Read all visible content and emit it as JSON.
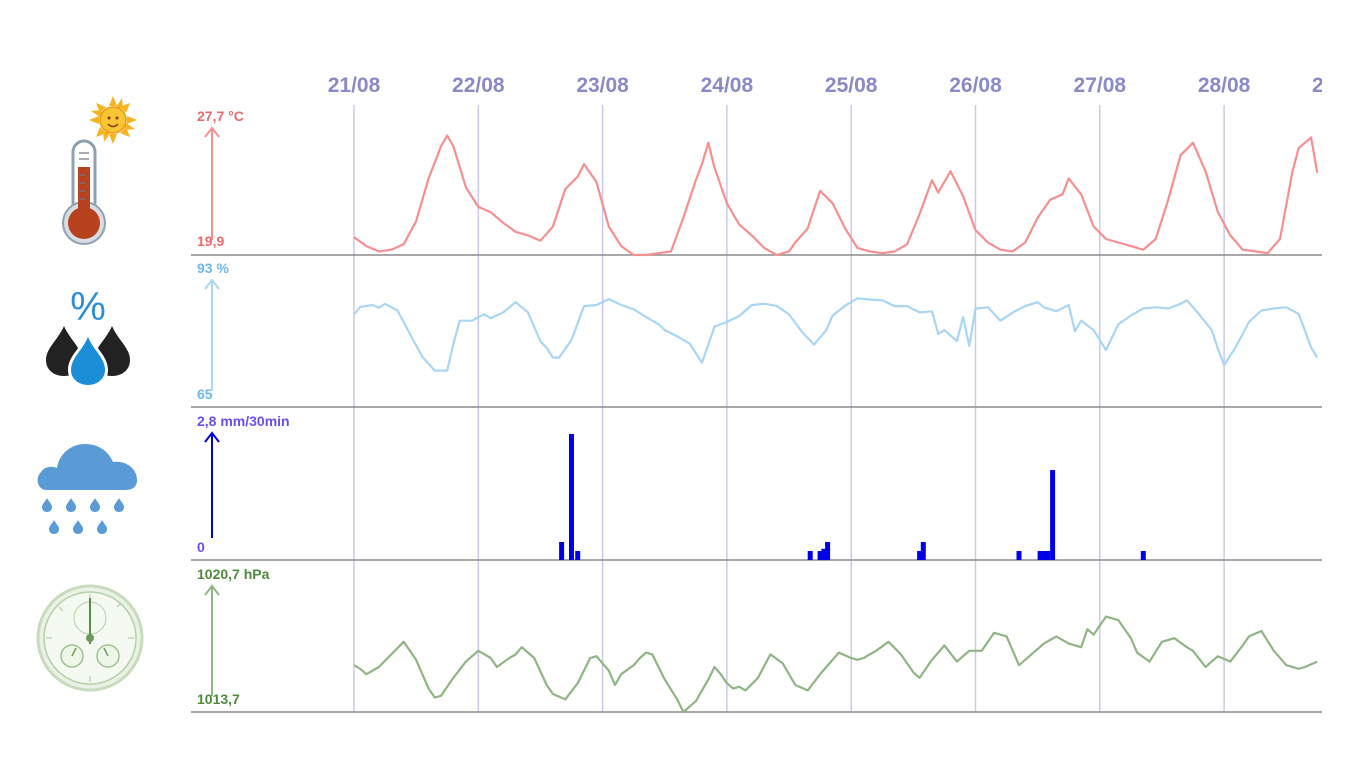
{
  "chart_data": {
    "type": "line",
    "x_ticks": [
      "21/08",
      "22/08",
      "23/08",
      "24/08",
      "25/08",
      "26/08",
      "27/08",
      "28/08",
      "2"
    ],
    "x_range_days": [
      -1.3,
      7.75
    ],
    "grid": true,
    "panels": [
      {
        "id": "temperature",
        "icon": "thermometer-sun-icon",
        "type": "line",
        "color": "#f78f8f",
        "axis_top_label": "27,7 °C",
        "axis_bottom_label": "19,9",
        "ylim": [
          19.9,
          27.7
        ],
        "points": [
          [
            0,
            20.9
          ],
          [
            0.1,
            20.4
          ],
          [
            0.2,
            20.1
          ],
          [
            0.3,
            20.2
          ],
          [
            0.4,
            20.5
          ],
          [
            0.5,
            21.8
          ],
          [
            0.6,
            24.2
          ],
          [
            0.7,
            26.0
          ],
          [
            0.75,
            26.6
          ],
          [
            0.8,
            26.0
          ],
          [
            0.9,
            23.7
          ],
          [
            1.0,
            22.6
          ],
          [
            1.1,
            22.3
          ],
          [
            1.2,
            21.7
          ],
          [
            1.3,
            21.2
          ],
          [
            1.4,
            21.0
          ],
          [
            1.5,
            20.7
          ],
          [
            1.6,
            21.5
          ],
          [
            1.7,
            23.6
          ],
          [
            1.8,
            24.3
          ],
          [
            1.85,
            25.0
          ],
          [
            1.95,
            24.0
          ],
          [
            2.05,
            21.5
          ],
          [
            2.15,
            20.4
          ],
          [
            2.25,
            19.9
          ],
          [
            2.35,
            19.9
          ],
          [
            2.45,
            20.0
          ],
          [
            2.55,
            20.1
          ],
          [
            2.65,
            22.0
          ],
          [
            2.75,
            24.1
          ],
          [
            2.8,
            25.0
          ],
          [
            2.85,
            26.2
          ],
          [
            2.9,
            24.8
          ],
          [
            3.0,
            22.8
          ],
          [
            3.1,
            21.6
          ],
          [
            3.2,
            21.0
          ],
          [
            3.3,
            20.3
          ],
          [
            3.4,
            19.9
          ],
          [
            3.5,
            20.1
          ],
          [
            3.55,
            20.6
          ],
          [
            3.65,
            21.4
          ],
          [
            3.75,
            23.5
          ],
          [
            3.85,
            22.8
          ],
          [
            3.95,
            21.4
          ],
          [
            4.05,
            20.3
          ],
          [
            4.15,
            20.1
          ],
          [
            4.25,
            20.0
          ],
          [
            4.35,
            20.1
          ],
          [
            4.45,
            20.5
          ],
          [
            4.55,
            22.2
          ],
          [
            4.65,
            24.1
          ],
          [
            4.7,
            23.4
          ],
          [
            4.8,
            24.6
          ],
          [
            4.9,
            23.2
          ],
          [
            5.0,
            21.3
          ],
          [
            5.1,
            20.6
          ],
          [
            5.2,
            20.2
          ],
          [
            5.3,
            20.1
          ],
          [
            5.4,
            20.6
          ],
          [
            5.5,
            22.0
          ],
          [
            5.6,
            23.0
          ],
          [
            5.7,
            23.3
          ],
          [
            5.75,
            24.2
          ],
          [
            5.85,
            23.3
          ],
          [
            5.95,
            21.5
          ],
          [
            6.05,
            20.8
          ],
          [
            6.15,
            20.6
          ],
          [
            6.25,
            20.4
          ],
          [
            6.35,
            20.2
          ],
          [
            6.45,
            20.8
          ],
          [
            6.55,
            23.0
          ],
          [
            6.65,
            25.5
          ],
          [
            6.75,
            26.2
          ],
          [
            6.85,
            24.6
          ],
          [
            6.95,
            22.3
          ],
          [
            7.05,
            21.0
          ],
          [
            7.15,
            20.2
          ],
          [
            7.25,
            20.1
          ],
          [
            7.35,
            20.0
          ],
          [
            7.45,
            20.8
          ],
          [
            7.55,
            24.6
          ],
          [
            7.6,
            25.9
          ],
          [
            7.7,
            26.5
          ],
          [
            7.75,
            24.5
          ]
        ]
      },
      {
        "id": "humidity",
        "icon": "humidity-drops-icon",
        "type": "line",
        "color": "#a9d6f5",
        "axis_top_label": "93 %",
        "axis_bottom_label": "65",
        "ylim": [
          65,
          93
        ],
        "points": [
          [
            0,
            84.5
          ],
          [
            0.05,
            86.4
          ],
          [
            0.15,
            86.9
          ],
          [
            0.2,
            86.2
          ],
          [
            0.25,
            87.2
          ],
          [
            0.35,
            85.5
          ],
          [
            0.45,
            79.5
          ],
          [
            0.55,
            73.7
          ],
          [
            0.65,
            70.2
          ],
          [
            0.75,
            70.2
          ],
          [
            0.8,
            77.0
          ],
          [
            0.85,
            82.9
          ],
          [
            0.95,
            82.9
          ],
          [
            1.0,
            83.8
          ],
          [
            1.05,
            84.5
          ],
          [
            1.1,
            83.5
          ],
          [
            1.2,
            85.0
          ],
          [
            1.3,
            87.6
          ],
          [
            1.4,
            85.0
          ],
          [
            1.5,
            77.6
          ],
          [
            1.55,
            76.0
          ],
          [
            1.6,
            73.5
          ],
          [
            1.65,
            73.5
          ],
          [
            1.75,
            78.0
          ],
          [
            1.85,
            86.6
          ],
          [
            1.95,
            86.9
          ],
          [
            2.05,
            88.4
          ],
          [
            2.15,
            86.9
          ],
          [
            2.25,
            85.8
          ],
          [
            2.35,
            83.8
          ],
          [
            2.45,
            82.0
          ],
          [
            2.5,
            80.5
          ],
          [
            2.6,
            78.9
          ],
          [
            2.7,
            77.1
          ],
          [
            2.8,
            72.2
          ],
          [
            2.85,
            76.8
          ],
          [
            2.9,
            81.4
          ],
          [
            3.0,
            82.6
          ],
          [
            3.1,
            84.1
          ],
          [
            3.2,
            86.9
          ],
          [
            3.3,
            87.2
          ],
          [
            3.4,
            86.7
          ],
          [
            3.5,
            84.5
          ],
          [
            3.6,
            80.2
          ],
          [
            3.7,
            76.8
          ],
          [
            3.8,
            80.5
          ],
          [
            3.85,
            84.2
          ],
          [
            3.95,
            86.7
          ],
          [
            4.05,
            88.6
          ],
          [
            4.15,
            88.3
          ],
          [
            4.25,
            88.1
          ],
          [
            4.35,
            86.6
          ],
          [
            4.45,
            86.6
          ],
          [
            4.55,
            85.0
          ],
          [
            4.65,
            85.3
          ],
          [
            4.7,
            79.5
          ],
          [
            4.75,
            80.5
          ],
          [
            4.85,
            77.7
          ],
          [
            4.9,
            83.8
          ],
          [
            4.95,
            76.5
          ],
          [
            5.0,
            86.0
          ],
          [
            5.1,
            86.3
          ],
          [
            5.2,
            82.9
          ],
          [
            5.3,
            85.0
          ],
          [
            5.4,
            86.6
          ],
          [
            5.5,
            87.6
          ],
          [
            5.55,
            86.3
          ],
          [
            5.65,
            85.3
          ],
          [
            5.75,
            86.9
          ],
          [
            5.8,
            80.2
          ],
          [
            5.85,
            82.9
          ],
          [
            5.95,
            80.5
          ],
          [
            6.05,
            75.4
          ],
          [
            6.15,
            82.0
          ],
          [
            6.25,
            84.2
          ],
          [
            6.35,
            86.0
          ],
          [
            6.45,
            86.3
          ],
          [
            6.55,
            86.0
          ],
          [
            6.65,
            87.2
          ],
          [
            6.7,
            88.1
          ],
          [
            6.8,
            84.5
          ],
          [
            6.9,
            80.5
          ],
          [
            6.95,
            75.8
          ],
          [
            7.0,
            71.6
          ],
          [
            7.1,
            76.5
          ],
          [
            7.2,
            82.6
          ],
          [
            7.3,
            85.5
          ],
          [
            7.4,
            86.0
          ],
          [
            7.5,
            86.3
          ],
          [
            7.6,
            84.6
          ],
          [
            7.7,
            76.1
          ],
          [
            7.75,
            73.5
          ]
        ]
      },
      {
        "id": "rain",
        "icon": "rain-cloud-icon",
        "type": "bar",
        "color": "#0000e6",
        "axis_top_label": "2,8 mm/30min",
        "axis_bottom_label": "0",
        "ylim": [
          0,
          2.8
        ],
        "bars": [
          [
            1.67,
            0.4
          ],
          [
            1.75,
            2.8
          ],
          [
            1.8,
            0.2
          ],
          [
            3.67,
            0.2
          ],
          [
            3.75,
            0.2
          ],
          [
            3.78,
            0.25
          ],
          [
            3.81,
            0.4
          ],
          [
            4.55,
            0.2
          ],
          [
            4.58,
            0.4
          ],
          [
            5.35,
            0.2
          ],
          [
            5.52,
            0.2
          ],
          [
            5.55,
            0.2
          ],
          [
            5.58,
            0.2
          ],
          [
            5.62,
            2.0
          ],
          [
            6.35,
            0.2
          ]
        ]
      },
      {
        "id": "pressure",
        "icon": "barometer-icon",
        "type": "line",
        "color": "#8fb585",
        "axis_top_label": "1020,7 hPa",
        "axis_bottom_label": "1013,7",
        "ylim": [
          1013.7,
          1020.7
        ],
        "points": [
          [
            0,
            1016.3
          ],
          [
            0.05,
            1016.1
          ],
          [
            0.1,
            1015.8
          ],
          [
            0.2,
            1016.2
          ],
          [
            0.3,
            1016.9
          ],
          [
            0.4,
            1017.6
          ],
          [
            0.5,
            1016.6
          ],
          [
            0.6,
            1015.0
          ],
          [
            0.65,
            1014.5
          ],
          [
            0.7,
            1014.6
          ],
          [
            0.8,
            1015.6
          ],
          [
            0.9,
            1016.5
          ],
          [
            1.0,
            1017.1
          ],
          [
            1.1,
            1016.7
          ],
          [
            1.15,
            1016.2
          ],
          [
            1.25,
            1016.7
          ],
          [
            1.3,
            1016.9
          ],
          [
            1.35,
            1017.3
          ],
          [
            1.45,
            1016.7
          ],
          [
            1.55,
            1015.2
          ],
          [
            1.6,
            1014.7
          ],
          [
            1.7,
            1014.4
          ],
          [
            1.8,
            1015.3
          ],
          [
            1.9,
            1016.7
          ],
          [
            1.95,
            1016.8
          ],
          [
            2.05,
            1016.0
          ],
          [
            2.1,
            1015.2
          ],
          [
            2.15,
            1015.8
          ],
          [
            2.25,
            1016.3
          ],
          [
            2.3,
            1016.7
          ],
          [
            2.35,
            1017.0
          ],
          [
            2.4,
            1016.9
          ],
          [
            2.5,
            1015.5
          ],
          [
            2.6,
            1014.4
          ],
          [
            2.65,
            1013.7
          ],
          [
            2.75,
            1014.3
          ],
          [
            2.85,
            1015.5
          ],
          [
            2.9,
            1016.2
          ],
          [
            2.95,
            1015.8
          ],
          [
            3.0,
            1015.3
          ],
          [
            3.05,
            1015.0
          ],
          [
            3.1,
            1015.1
          ],
          [
            3.15,
            1014.9
          ],
          [
            3.25,
            1015.6
          ],
          [
            3.35,
            1016.9
          ],
          [
            3.45,
            1016.4
          ],
          [
            3.55,
            1015.2
          ],
          [
            3.65,
            1014.9
          ],
          [
            3.75,
            1015.8
          ],
          [
            3.8,
            1016.2
          ],
          [
            3.9,
            1017.0
          ],
          [
            4.0,
            1016.7
          ],
          [
            4.05,
            1016.6
          ],
          [
            4.1,
            1016.7
          ],
          [
            4.2,
            1017.1
          ],
          [
            4.3,
            1017.6
          ],
          [
            4.4,
            1016.9
          ],
          [
            4.5,
            1015.9
          ],
          [
            4.55,
            1015.6
          ],
          [
            4.65,
            1016.6
          ],
          [
            4.75,
            1017.4
          ],
          [
            4.85,
            1016.5
          ],
          [
            4.95,
            1017.1
          ],
          [
            5.05,
            1017.1
          ],
          [
            5.15,
            1018.1
          ],
          [
            5.25,
            1017.9
          ],
          [
            5.35,
            1016.3
          ],
          [
            5.45,
            1016.9
          ],
          [
            5.55,
            1017.5
          ],
          [
            5.6,
            1017.7
          ],
          [
            5.65,
            1017.9
          ],
          [
            5.75,
            1017.5
          ],
          [
            5.85,
            1017.3
          ],
          [
            5.9,
            1018.3
          ],
          [
            5.95,
            1018.0
          ],
          [
            6.05,
            1019.0
          ],
          [
            6.15,
            1018.8
          ],
          [
            6.25,
            1017.8
          ],
          [
            6.3,
            1017.0
          ],
          [
            6.4,
            1016.5
          ],
          [
            6.5,
            1017.6
          ],
          [
            6.6,
            1017.8
          ],
          [
            6.7,
            1017.3
          ],
          [
            6.75,
            1017.1
          ],
          [
            6.85,
            1016.2
          ],
          [
            6.95,
            1016.8
          ],
          [
            7.05,
            1016.5
          ],
          [
            7.15,
            1017.4
          ],
          [
            7.2,
            1017.9
          ],
          [
            7.3,
            1018.2
          ],
          [
            7.4,
            1017.1
          ],
          [
            7.5,
            1016.3
          ],
          [
            7.6,
            1016.1
          ],
          [
            7.65,
            1016.2
          ],
          [
            7.75,
            1016.5
          ]
        ]
      }
    ]
  }
}
